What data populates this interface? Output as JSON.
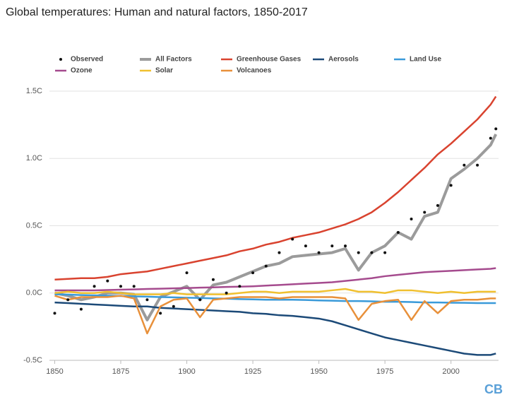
{
  "chart_data": {
    "type": "line",
    "title": "Global temperatures: Human and natural factors, 1850-2017",
    "logo": "CB",
    "grid": true,
    "xlim": [
      1848,
      2018
    ],
    "ylim": [
      -0.5,
      1.5
    ],
    "xticks": [
      1850,
      1875,
      1900,
      1925,
      1950,
      1975,
      2000
    ],
    "yticks": [
      {
        "value": -0.5,
        "label": "-0.5C"
      },
      {
        "value": 0.0,
        "label": "0.0C"
      },
      {
        "value": 0.5,
        "label": "0.5C"
      },
      {
        "value": 1.0,
        "label": "1.0C"
      },
      {
        "value": 1.5,
        "label": "1.5C"
      }
    ],
    "x": [
      1850,
      1855,
      1860,
      1865,
      1870,
      1875,
      1880,
      1885,
      1890,
      1895,
      1900,
      1905,
      1910,
      1915,
      1920,
      1925,
      1930,
      1935,
      1940,
      1945,
      1950,
      1955,
      1960,
      1965,
      1970,
      1975,
      1980,
      1985,
      1990,
      1995,
      2000,
      2005,
      2010,
      2015,
      2017
    ],
    "series": [
      {
        "name": "Observed",
        "color": "#111111",
        "mode": "markers",
        "values": [
          -0.15,
          -0.05,
          -0.12,
          0.05,
          0.09,
          0.05,
          0.05,
          -0.05,
          -0.15,
          -0.1,
          0.15,
          -0.05,
          0.1,
          0.0,
          0.05,
          0.15,
          0.2,
          0.3,
          0.4,
          0.35,
          0.3,
          0.35,
          0.35,
          0.3,
          0.3,
          0.3,
          0.45,
          0.55,
          0.6,
          0.65,
          0.8,
          0.95,
          0.95,
          1.15,
          1.22
        ]
      },
      {
        "name": "All Factors",
        "color": "#9b9b9b",
        "width": 4,
        "values": [
          0.0,
          -0.02,
          -0.05,
          -0.03,
          0.0,
          0.0,
          -0.01,
          -0.2,
          -0.03,
          0.01,
          0.05,
          -0.05,
          0.06,
          0.08,
          0.12,
          0.16,
          0.2,
          0.22,
          0.27,
          0.28,
          0.29,
          0.3,
          0.33,
          0.17,
          0.3,
          0.35,
          0.45,
          0.4,
          0.57,
          0.6,
          0.85,
          0.92,
          1.0,
          1.1,
          1.18
        ]
      },
      {
        "name": "Greenhouse Gases",
        "color": "#d9432f",
        "width": 2.5,
        "values": [
          0.1,
          0.105,
          0.11,
          0.11,
          0.12,
          0.14,
          0.15,
          0.16,
          0.18,
          0.2,
          0.22,
          0.24,
          0.26,
          0.28,
          0.31,
          0.33,
          0.36,
          0.38,
          0.41,
          0.43,
          0.45,
          0.48,
          0.51,
          0.55,
          0.6,
          0.67,
          0.75,
          0.84,
          0.93,
          1.03,
          1.11,
          1.2,
          1.29,
          1.4,
          1.46
        ]
      },
      {
        "name": "Aerosols",
        "color": "#1c4a78",
        "width": 2.5,
        "values": [
          -0.07,
          -0.075,
          -0.08,
          -0.085,
          -0.09,
          -0.095,
          -0.1,
          -0.1,
          -0.11,
          -0.115,
          -0.12,
          -0.125,
          -0.13,
          -0.135,
          -0.14,
          -0.15,
          -0.155,
          -0.165,
          -0.17,
          -0.18,
          -0.19,
          -0.21,
          -0.24,
          -0.27,
          -0.3,
          -0.33,
          -0.35,
          -0.37,
          -0.39,
          -0.41,
          -0.43,
          -0.45,
          -0.46,
          -0.46,
          -0.45
        ]
      },
      {
        "name": "Land Use",
        "color": "#3a9ad9",
        "width": 2.5,
        "values": [
          -0.01,
          -0.012,
          -0.015,
          -0.017,
          -0.02,
          -0.022,
          -0.025,
          -0.027,
          -0.03,
          -0.032,
          -0.035,
          -0.037,
          -0.04,
          -0.042,
          -0.045,
          -0.047,
          -0.05,
          -0.05,
          -0.05,
          -0.052,
          -0.055,
          -0.057,
          -0.06,
          -0.06,
          -0.062,
          -0.065,
          -0.065,
          -0.067,
          -0.07,
          -0.07,
          -0.072,
          -0.073,
          -0.075,
          -0.075,
          -0.075
        ]
      },
      {
        "name": "Ozone",
        "color": "#a54b8e",
        "width": 2.5,
        "values": [
          0.02,
          0.02,
          0.02,
          0.02,
          0.022,
          0.025,
          0.027,
          0.03,
          0.032,
          0.035,
          0.037,
          0.04,
          0.042,
          0.045,
          0.047,
          0.05,
          0.055,
          0.06,
          0.065,
          0.07,
          0.075,
          0.08,
          0.09,
          0.1,
          0.11,
          0.125,
          0.135,
          0.145,
          0.155,
          0.16,
          0.165,
          0.17,
          0.175,
          0.18,
          0.185
        ]
      },
      {
        "name": "Solar",
        "color": "#f0c030",
        "width": 2.5,
        "values": [
          0.0,
          0.01,
          0.0,
          0.0,
          0.01,
          0.0,
          -0.01,
          -0.01,
          -0.01,
          0.0,
          -0.01,
          -0.01,
          -0.01,
          -0.01,
          0.0,
          0.01,
          0.01,
          0.0,
          0.01,
          0.01,
          0.01,
          0.02,
          0.03,
          0.01,
          0.01,
          0.0,
          0.02,
          0.02,
          0.01,
          0.0,
          0.01,
          0.0,
          0.01,
          0.01,
          0.01
        ]
      },
      {
        "name": "Volcanoes",
        "color": "#e8903a",
        "width": 2.5,
        "values": [
          -0.02,
          -0.05,
          -0.03,
          -0.03,
          -0.03,
          -0.02,
          -0.04,
          -0.3,
          -0.1,
          -0.05,
          -0.04,
          -0.18,
          -0.05,
          -0.04,
          -0.03,
          -0.03,
          -0.03,
          -0.04,
          -0.03,
          -0.03,
          -0.03,
          -0.03,
          -0.04,
          -0.2,
          -0.08,
          -0.06,
          -0.05,
          -0.2,
          -0.06,
          -0.15,
          -0.06,
          -0.05,
          -0.05,
          -0.04,
          -0.04
        ]
      }
    ]
  }
}
